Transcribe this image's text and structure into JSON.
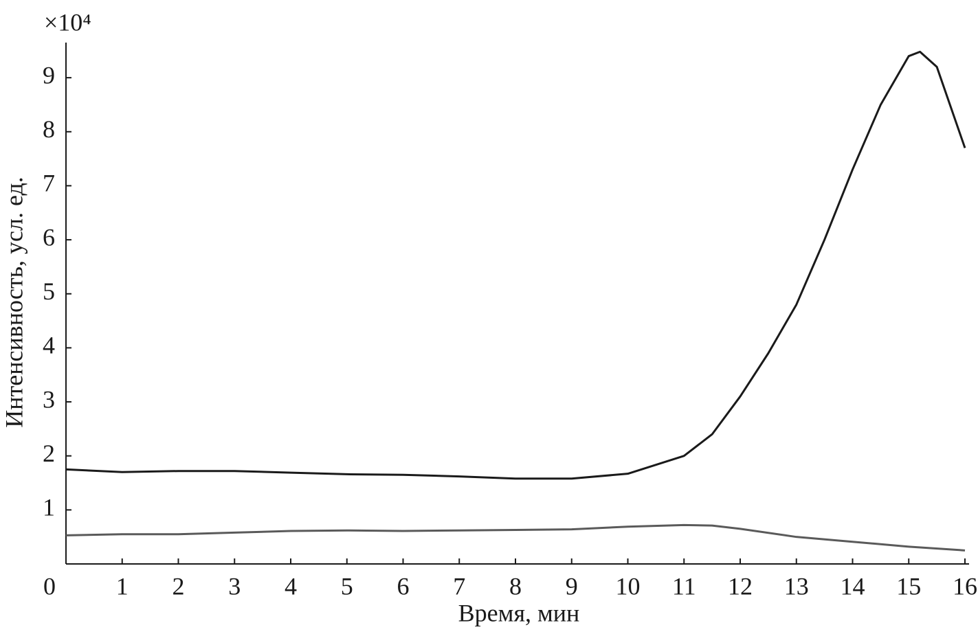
{
  "chart_data": {
    "type": "line",
    "x_label": "Время, мин",
    "y_label": "Интенсивность, усл. ед.",
    "y_multiplier": "×10⁴",
    "xlim": [
      0,
      16
    ],
    "ylim": [
      0,
      9.65
    ],
    "xticks": [
      0,
      1,
      2,
      3,
      4,
      5,
      6,
      7,
      8,
      9,
      10,
      11,
      12,
      13,
      14,
      15,
      16
    ],
    "yticks": [
      1,
      2,
      3,
      4,
      5,
      6,
      7,
      8,
      9
    ],
    "series": [
      {
        "color": "#1a1a1a",
        "x": [
          0,
          1,
          2,
          3,
          4,
          5,
          6,
          7,
          8,
          9,
          10,
          11,
          11.5,
          12,
          12.5,
          13,
          13.5,
          14,
          14.5,
          15,
          15.2,
          15.5,
          16
        ],
        "values": [
          1.75,
          1.7,
          1.72,
          1.72,
          1.69,
          1.66,
          1.65,
          1.62,
          1.58,
          1.58,
          1.67,
          2.0,
          2.4,
          3.1,
          3.9,
          4.8,
          6.0,
          7.3,
          8.5,
          9.4,
          9.48,
          9.2,
          7.7
        ]
      },
      {
        "color": "#5a5a5a",
        "x": [
          0,
          1,
          2,
          3,
          4,
          5,
          6,
          7,
          8,
          9,
          10,
          11,
          11.5,
          12,
          13,
          14,
          15,
          16
        ],
        "values": [
          0.53,
          0.55,
          0.55,
          0.58,
          0.61,
          0.62,
          0.61,
          0.62,
          0.63,
          0.64,
          0.69,
          0.72,
          0.71,
          0.65,
          0.5,
          0.41,
          0.32,
          0.25
        ]
      }
    ]
  }
}
